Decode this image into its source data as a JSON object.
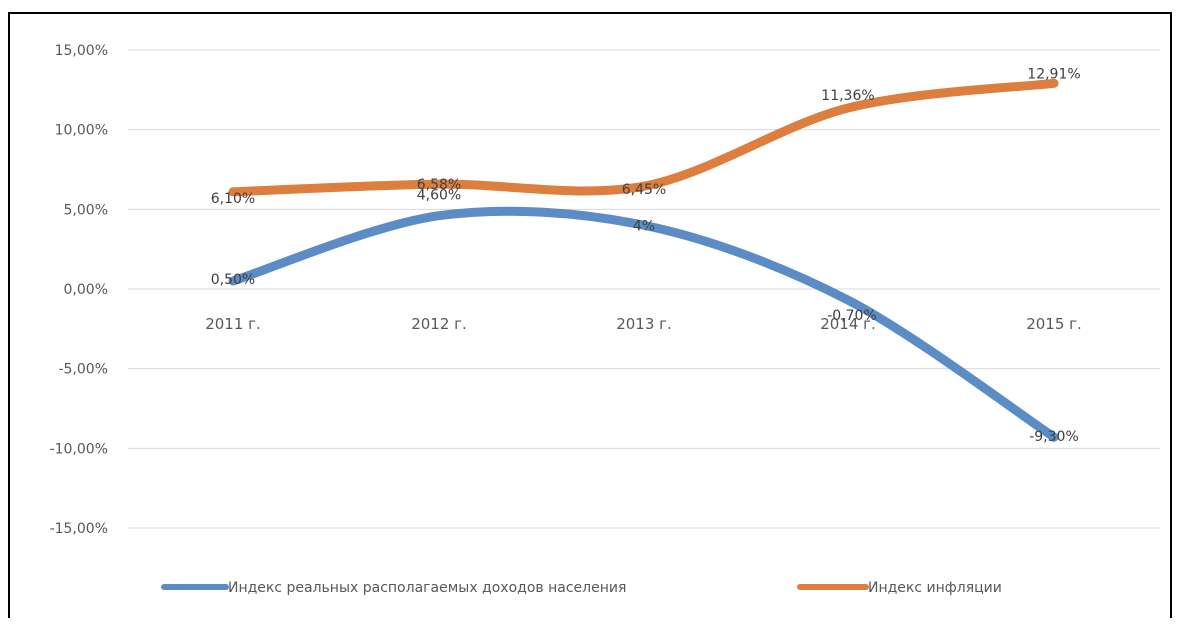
{
  "chart_data": {
    "type": "line",
    "categories": [
      "2011 г.",
      "2012 г.",
      "2013 г.",
      "2014 г.",
      "2015 г."
    ],
    "ylim": [
      -15,
      15
    ],
    "yticks": [
      15,
      10,
      5,
      0,
      -5,
      -10,
      -15
    ],
    "ytick_labels": [
      "15,00%",
      "10,00%",
      "5,00%",
      "0,00%",
      "-5,00%",
      "-10,00%",
      "-15,00%"
    ],
    "grid": true,
    "legend_position": "bottom",
    "series": [
      {
        "name": "Индекс реальных располагаемых доходов населения",
        "values": [
          0.5,
          4.6,
          4.0,
          -0.7,
          -9.3
        ],
        "labels": [
          "0,50%",
          "4,60%",
          "4%",
          "-0,70%",
          "-9,30%"
        ],
        "color": "#5b8cc6"
      },
      {
        "name": "Индекс инфляции",
        "values": [
          6.1,
          6.58,
          6.45,
          11.36,
          12.91
        ],
        "labels": [
          "6,10%",
          "6,58%",
          "6,45%",
          "11,36%",
          "12,91%"
        ],
        "color": "#dd7e3f"
      }
    ]
  }
}
